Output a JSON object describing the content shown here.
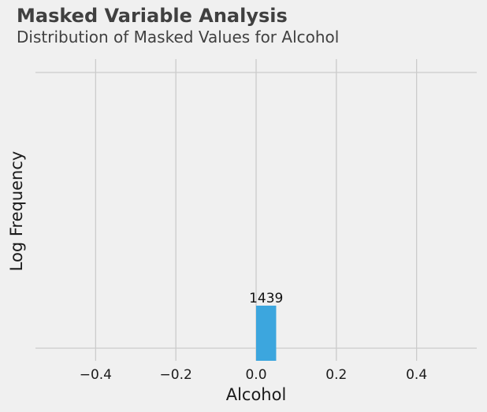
{
  "header": {
    "title": "Masked Variable Analysis",
    "subtitle": "Distribution of Masked Values for Alcohol"
  },
  "chart_data": {
    "type": "bar",
    "title": "Masked Variable Analysis",
    "subtitle": "Distribution of Masked Values for Alcohol",
    "xlabel": "Alcohol",
    "ylabel": "Log Frequency",
    "y_scale": "log",
    "xlim": [
      -0.55,
      0.55
    ],
    "x_ticks": [
      -0.4,
      -0.2,
      0.0,
      0.2,
      0.4
    ],
    "x_tick_labels": [
      "−0.4",
      "−0.2",
      "0.0",
      "0.2",
      "0.4"
    ],
    "grid": true,
    "bars": [
      {
        "x_start": 0.0,
        "x_end": 0.05,
        "value": 1439,
        "label": "1439"
      }
    ],
    "colors": {
      "bar": "#3ca6de",
      "grid": "#cbcbcb",
      "background": "#f0f0f0",
      "text": "#404040"
    }
  }
}
